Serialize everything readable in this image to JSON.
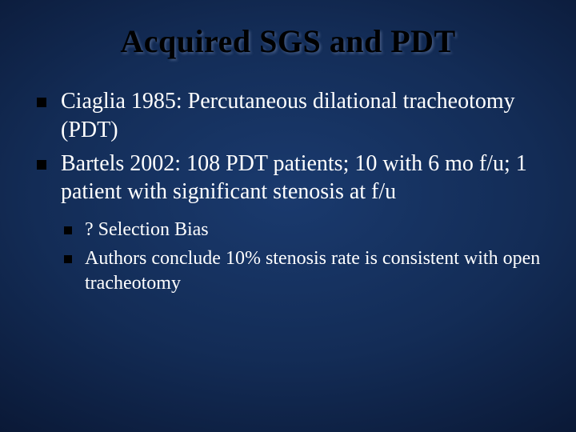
{
  "slide": {
    "title": "Acquired SGS and PDT",
    "title_color": "#000000",
    "text_color": "#ffffff",
    "background_gradient": {
      "inner": "#1a3a6e",
      "mid": "#132c56",
      "outer": "#0a1835",
      "edge": "#040c1e"
    },
    "title_fontsize": 40,
    "body_fontsize": 28,
    "sub_fontsize": 24,
    "bullet_color": "#000000",
    "bullets": [
      {
        "text": "Ciaglia 1985:  Percutaneous dilational tracheotomy (PDT)"
      },
      {
        "text": "Bartels 2002:  108 PDT patients; 10 with 6 mo f/u;  1 patient with significant stenosis at f/u"
      }
    ],
    "sub_bullets": [
      {
        "text": "? Selection Bias"
      },
      {
        "text": "Authors conclude 10% stenosis rate is consistent with open tracheotomy"
      }
    ]
  }
}
